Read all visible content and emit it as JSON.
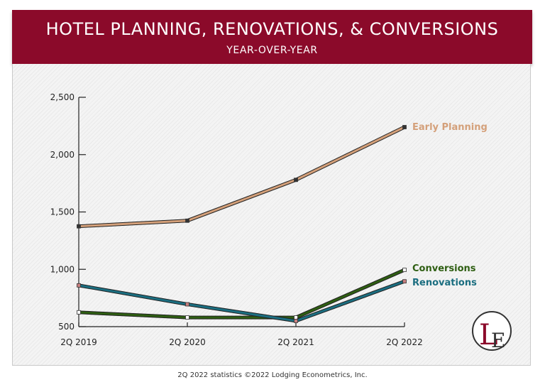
{
  "header": {
    "title": "HOTEL PLANNING, RENOVATIONS, & CONVERSIONS",
    "subtitle": "YEAR-OVER-YEAR"
  },
  "footer": {
    "note": "2Q 2022 statistics  ©2022 Lodging Econometrics, Inc."
  },
  "logo": {
    "text": "LE",
    "colors": {
      "L": "#8b0a2a",
      "E": "#333333"
    }
  },
  "chart_data": {
    "type": "line",
    "title": "HOTEL PLANNING, RENOVATIONS, & CONVERSIONS",
    "subtitle": "YEAR-OVER-YEAR",
    "categories": [
      "2Q 2019",
      "2Q 2020",
      "2Q 2021",
      "2Q 2022"
    ],
    "yticks": [
      500,
      1000,
      1500,
      2000,
      2500
    ],
    "ytick_labels": [
      "500",
      "1,000",
      "1,500",
      "2,000",
      "2,500"
    ],
    "ylim": [
      500,
      2500
    ],
    "grid": false,
    "legend": "inline labels at line ends",
    "series": [
      {
        "name": "Early Planning",
        "values": [
          1375,
          1424,
          1780,
          2240
        ],
        "color": "#d4a07a",
        "marker": "#333333"
      },
      {
        "name": "Conversions",
        "values": [
          625,
          580,
          580,
          995
        ],
        "color": "#2e5e12",
        "marker": "#ffffff"
      },
      {
        "name": "Renovations",
        "values": [
          860,
          695,
          550,
          895
        ],
        "color": "#1b6e80",
        "marker": "#c88080"
      }
    ]
  }
}
